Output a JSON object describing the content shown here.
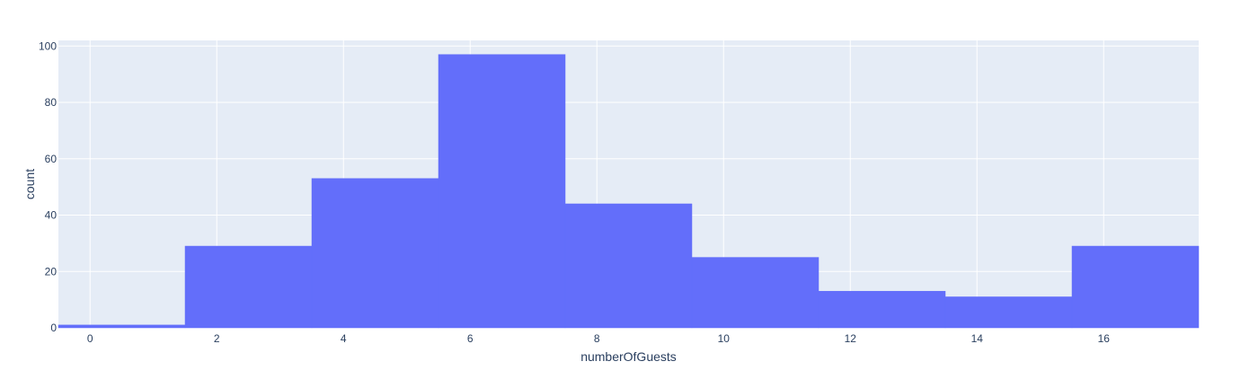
{
  "chart_data": {
    "type": "bar",
    "subtype": "histogram",
    "xlabel": "numberOfGuests",
    "ylabel": "count",
    "bin_width": 2,
    "bins": [
      {
        "start": -0.5,
        "end": 1.5,
        "count": 1
      },
      {
        "start": 1.5,
        "end": 3.5,
        "count": 29
      },
      {
        "start": 3.5,
        "end": 5.5,
        "count": 53
      },
      {
        "start": 5.5,
        "end": 7.5,
        "count": 97
      },
      {
        "start": 7.5,
        "end": 9.5,
        "count": 44
      },
      {
        "start": 9.5,
        "end": 11.5,
        "count": 25
      },
      {
        "start": 11.5,
        "end": 13.5,
        "count": 13
      },
      {
        "start": 13.5,
        "end": 15.5,
        "count": 11
      },
      {
        "start": 15.5,
        "end": 17.5,
        "count": 29
      }
    ],
    "xlim": [
      -0.5,
      17.5
    ],
    "ylim": [
      0,
      102
    ],
    "x_ticks": [
      0,
      2,
      4,
      6,
      8,
      10,
      12,
      14,
      16
    ],
    "y_ticks": [
      0,
      20,
      40,
      60,
      80,
      100
    ],
    "grid": true,
    "legend": "none",
    "colors": {
      "bar": "#636efa",
      "plot_background": "#e5ecf6",
      "grid": "#ffffff",
      "text": "#2a3f5f"
    }
  }
}
